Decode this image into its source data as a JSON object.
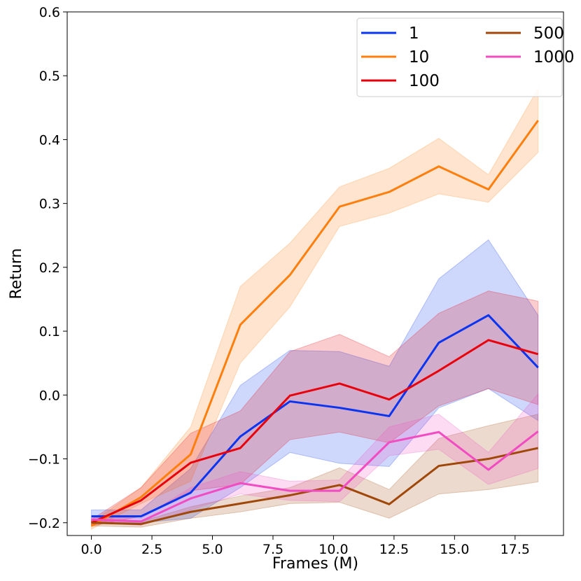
{
  "chart_data": {
    "type": "line",
    "title": "",
    "xlabel": "Frames (M)",
    "ylabel": "Return",
    "xlim": [
      -1.0,
      19.5
    ],
    "ylim": [
      -0.22,
      0.6
    ],
    "xticks": [
      0.0,
      2.5,
      5.0,
      7.5,
      10.0,
      12.5,
      15.0,
      17.5
    ],
    "xtick_labels": [
      "0.0",
      "2.5",
      "5.0",
      "7.5",
      "10.0",
      "12.5",
      "15.0",
      "17.5"
    ],
    "yticks": [
      -0.2,
      -0.1,
      0.0,
      0.1,
      0.2,
      0.3,
      0.4,
      0.5,
      0.6
    ],
    "ytick_labels": [
      "−0.2",
      "−0.1",
      "0.0",
      "0.1",
      "0.2",
      "0.3",
      "0.4",
      "0.5",
      "0.6"
    ],
    "legend_position": "top-right",
    "x": [
      0.0,
      2.05,
      4.1,
      6.15,
      8.2,
      10.25,
      12.3,
      14.35,
      16.4,
      18.45
    ],
    "series": [
      {
        "name": "1",
        "color": "#0a35f0",
        "values": [
          -0.19,
          -0.19,
          -0.153,
          -0.065,
          -0.01,
          -0.02,
          -0.033,
          0.082,
          0.125,
          0.043
        ],
        "lower": [
          -0.2,
          -0.2,
          -0.193,
          -0.145,
          -0.09,
          -0.107,
          -0.112,
          -0.02,
          0.01,
          -0.04
        ],
        "upper": [
          -0.18,
          -0.18,
          -0.115,
          0.015,
          0.07,
          0.068,
          0.045,
          0.182,
          0.243,
          0.125
        ]
      },
      {
        "name": "10",
        "color": "#ff7f0e",
        "values": [
          -0.205,
          -0.16,
          -0.093,
          0.11,
          0.188,
          0.295,
          0.318,
          0.358,
          0.322,
          0.43
        ],
        "lower": [
          -0.21,
          -0.17,
          -0.135,
          0.05,
          0.138,
          0.264,
          0.285,
          0.315,
          0.302,
          0.38
        ],
        "upper": [
          -0.2,
          -0.145,
          -0.05,
          0.17,
          0.238,
          0.326,
          0.355,
          0.402,
          0.345,
          0.48
        ]
      },
      {
        "name": "100",
        "color": "#e8000b",
        "values": [
          -0.2,
          -0.165,
          -0.106,
          -0.083,
          -0.001,
          0.018,
          -0.007,
          0.038,
          0.086,
          0.064
        ],
        "lower": [
          -0.205,
          -0.19,
          -0.15,
          -0.14,
          -0.07,
          -0.058,
          -0.075,
          -0.017,
          0.01,
          -0.015
        ],
        "upper": [
          -0.195,
          -0.145,
          -0.06,
          -0.025,
          0.068,
          0.095,
          0.06,
          0.128,
          0.163,
          0.147
        ]
      },
      {
        "name": "500",
        "color": "#a0480a",
        "values": [
          -0.2,
          -0.202,
          -0.183,
          -0.17,
          -0.157,
          -0.141,
          -0.171,
          -0.111,
          -0.1,
          -0.083
        ],
        "lower": [
          -0.205,
          -0.207,
          -0.193,
          -0.183,
          -0.17,
          -0.168,
          -0.193,
          -0.155,
          -0.148,
          -0.136
        ],
        "upper": [
          -0.195,
          -0.198,
          -0.175,
          -0.158,
          -0.145,
          -0.114,
          -0.148,
          -0.068,
          -0.048,
          -0.03
        ]
      },
      {
        "name": "1000",
        "color": "#f14cc1",
        "values": [
          -0.195,
          -0.198,
          -0.162,
          -0.138,
          -0.15,
          -0.15,
          -0.074,
          -0.058,
          -0.117,
          -0.057
        ],
        "lower": [
          -0.2,
          -0.204,
          -0.18,
          -0.155,
          -0.165,
          -0.167,
          -0.095,
          -0.085,
          -0.14,
          -0.115
        ],
        "upper": [
          -0.19,
          -0.193,
          -0.145,
          -0.12,
          -0.135,
          -0.133,
          -0.05,
          -0.03,
          -0.09,
          0.002
        ]
      }
    ]
  }
}
